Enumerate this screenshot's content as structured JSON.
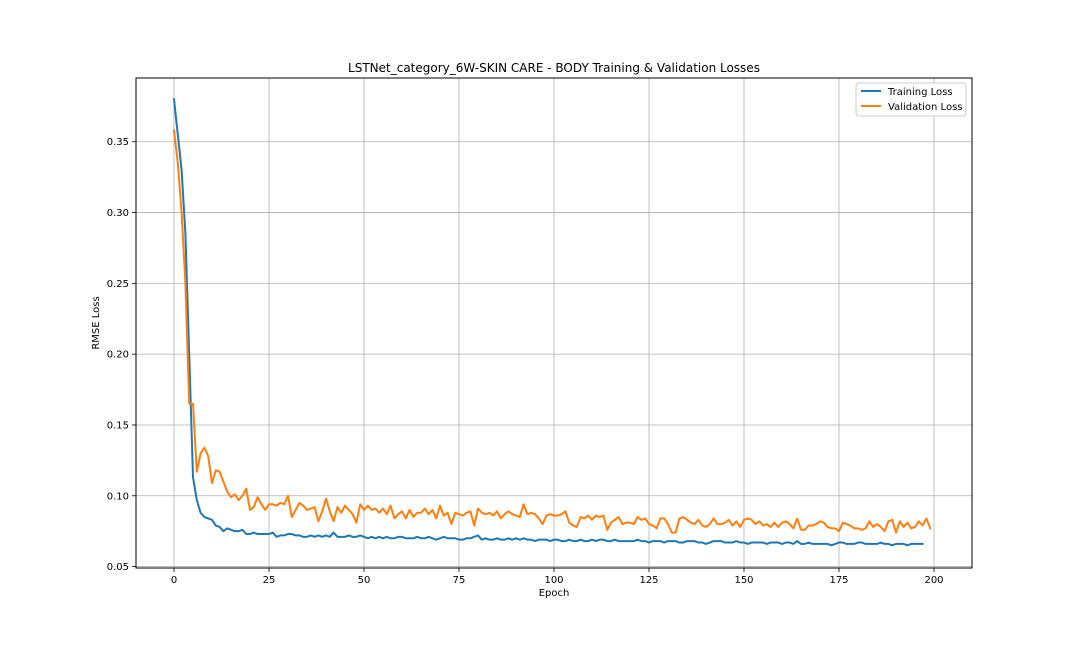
{
  "chart_data": {
    "type": "line",
    "title": "LSTNet_category_6W-SKIN CARE - BODY Training & Validation Losses",
    "xlabel": "Epoch",
    "ylabel": "RMSE Loss",
    "xlim": [
      -10,
      210
    ],
    "ylim": [
      0.049,
      0.395
    ],
    "x_ticks": [
      0,
      25,
      50,
      75,
      100,
      125,
      150,
      175,
      200
    ],
    "y_ticks": [
      0.05,
      0.1,
      0.15,
      0.2,
      0.25,
      0.3,
      0.35
    ],
    "y_tick_labels": [
      "0.05",
      "0.10",
      "0.15",
      "0.20",
      "0.25",
      "0.30",
      "0.35"
    ],
    "grid": true,
    "legend_position": "top-right",
    "series": [
      {
        "name": "Training Loss",
        "color": "#1f77b4",
        "values": [
          0.38,
          0.355,
          0.33,
          0.285,
          0.2,
          0.113,
          0.097,
          0.088,
          0.085,
          0.084,
          0.083,
          0.079,
          0.078,
          0.075,
          0.077,
          0.076,
          0.075,
          0.075,
          0.076,
          0.073,
          0.073,
          0.074,
          0.073,
          0.073,
          0.073,
          0.073,
          0.074,
          0.071,
          0.072,
          0.072,
          0.073,
          0.073,
          0.072,
          0.072,
          0.071,
          0.071,
          0.072,
          0.071,
          0.072,
          0.071,
          0.072,
          0.071,
          0.074,
          0.071,
          0.071,
          0.071,
          0.072,
          0.071,
          0.071,
          0.072,
          0.071,
          0.07,
          0.071,
          0.07,
          0.071,
          0.07,
          0.071,
          0.07,
          0.07,
          0.071,
          0.071,
          0.07,
          0.07,
          0.07,
          0.071,
          0.07,
          0.07,
          0.071,
          0.07,
          0.069,
          0.07,
          0.071,
          0.07,
          0.07,
          0.07,
          0.069,
          0.069,
          0.07,
          0.07,
          0.071,
          0.072,
          0.069,
          0.07,
          0.069,
          0.069,
          0.07,
          0.069,
          0.069,
          0.07,
          0.069,
          0.07,
          0.069,
          0.07,
          0.069,
          0.069,
          0.068,
          0.069,
          0.069,
          0.069,
          0.068,
          0.069,
          0.069,
          0.068,
          0.068,
          0.069,
          0.068,
          0.068,
          0.069,
          0.068,
          0.068,
          0.069,
          0.068,
          0.069,
          0.069,
          0.068,
          0.068,
          0.069,
          0.068,
          0.068,
          0.068,
          0.068,
          0.068,
          0.069,
          0.068,
          0.068,
          0.067,
          0.068,
          0.068,
          0.068,
          0.067,
          0.068,
          0.068,
          0.068,
          0.067,
          0.067,
          0.068,
          0.068,
          0.068,
          0.067,
          0.067,
          0.066,
          0.067,
          0.068,
          0.068,
          0.068,
          0.067,
          0.067,
          0.067,
          0.068,
          0.067,
          0.067,
          0.066,
          0.067,
          0.067,
          0.067,
          0.067,
          0.066,
          0.067,
          0.067,
          0.067,
          0.066,
          0.067,
          0.067,
          0.066,
          0.068,
          0.066,
          0.066,
          0.067,
          0.066,
          0.066,
          0.066,
          0.066,
          0.066,
          0.065,
          0.066,
          0.067,
          0.067,
          0.066,
          0.066,
          0.066,
          0.067,
          0.067,
          0.066,
          0.066,
          0.066,
          0.066,
          0.067,
          0.066,
          0.066,
          0.065,
          0.066,
          0.066,
          0.066,
          0.065,
          0.066,
          0.066,
          0.066,
          0.066
        ]
      },
      {
        "name": "Validation Loss",
        "color": "#ff7f0e",
        "values": [
          0.358,
          0.335,
          0.3,
          0.25,
          0.165,
          0.165,
          0.117,
          0.13,
          0.134,
          0.128,
          0.109,
          0.118,
          0.117,
          0.11,
          0.103,
          0.099,
          0.101,
          0.097,
          0.1,
          0.105,
          0.09,
          0.092,
          0.099,
          0.094,
          0.09,
          0.094,
          0.094,
          0.093,
          0.095,
          0.094,
          0.1,
          0.085,
          0.09,
          0.095,
          0.093,
          0.09,
          0.091,
          0.092,
          0.082,
          0.089,
          0.098,
          0.089,
          0.082,
          0.092,
          0.088,
          0.093,
          0.09,
          0.087,
          0.081,
          0.094,
          0.09,
          0.093,
          0.09,
          0.091,
          0.088,
          0.091,
          0.087,
          0.093,
          0.084,
          0.087,
          0.089,
          0.084,
          0.09,
          0.085,
          0.088,
          0.088,
          0.091,
          0.087,
          0.09,
          0.084,
          0.093,
          0.086,
          0.088,
          0.08,
          0.088,
          0.087,
          0.086,
          0.088,
          0.089,
          0.079,
          0.091,
          0.088,
          0.087,
          0.088,
          0.086,
          0.089,
          0.084,
          0.087,
          0.089,
          0.087,
          0.086,
          0.085,
          0.094,
          0.087,
          0.088,
          0.087,
          0.084,
          0.08,
          0.086,
          0.087,
          0.086,
          0.086,
          0.087,
          0.089,
          0.081,
          0.079,
          0.078,
          0.085,
          0.084,
          0.086,
          0.083,
          0.086,
          0.085,
          0.086,
          0.076,
          0.081,
          0.083,
          0.085,
          0.08,
          0.081,
          0.081,
          0.08,
          0.085,
          0.083,
          0.084,
          0.08,
          0.079,
          0.077,
          0.084,
          0.084,
          0.08,
          0.074,
          0.074,
          0.084,
          0.085,
          0.083,
          0.081,
          0.08,
          0.083,
          0.079,
          0.078,
          0.08,
          0.084,
          0.08,
          0.08,
          0.081,
          0.083,
          0.079,
          0.082,
          0.078,
          0.083,
          0.084,
          0.083,
          0.08,
          0.082,
          0.079,
          0.08,
          0.078,
          0.081,
          0.078,
          0.081,
          0.082,
          0.08,
          0.077,
          0.084,
          0.076,
          0.076,
          0.079,
          0.079,
          0.08,
          0.082,
          0.081,
          0.078,
          0.077,
          0.077,
          0.075,
          0.081,
          0.08,
          0.079,
          0.077,
          0.077,
          0.076,
          0.077,
          0.082,
          0.078,
          0.08,
          0.078,
          0.075,
          0.082,
          0.083,
          0.074,
          0.082,
          0.078,
          0.081,
          0.077,
          0.078,
          0.082,
          0.079,
          0.084,
          0.077
        ]
      }
    ]
  }
}
